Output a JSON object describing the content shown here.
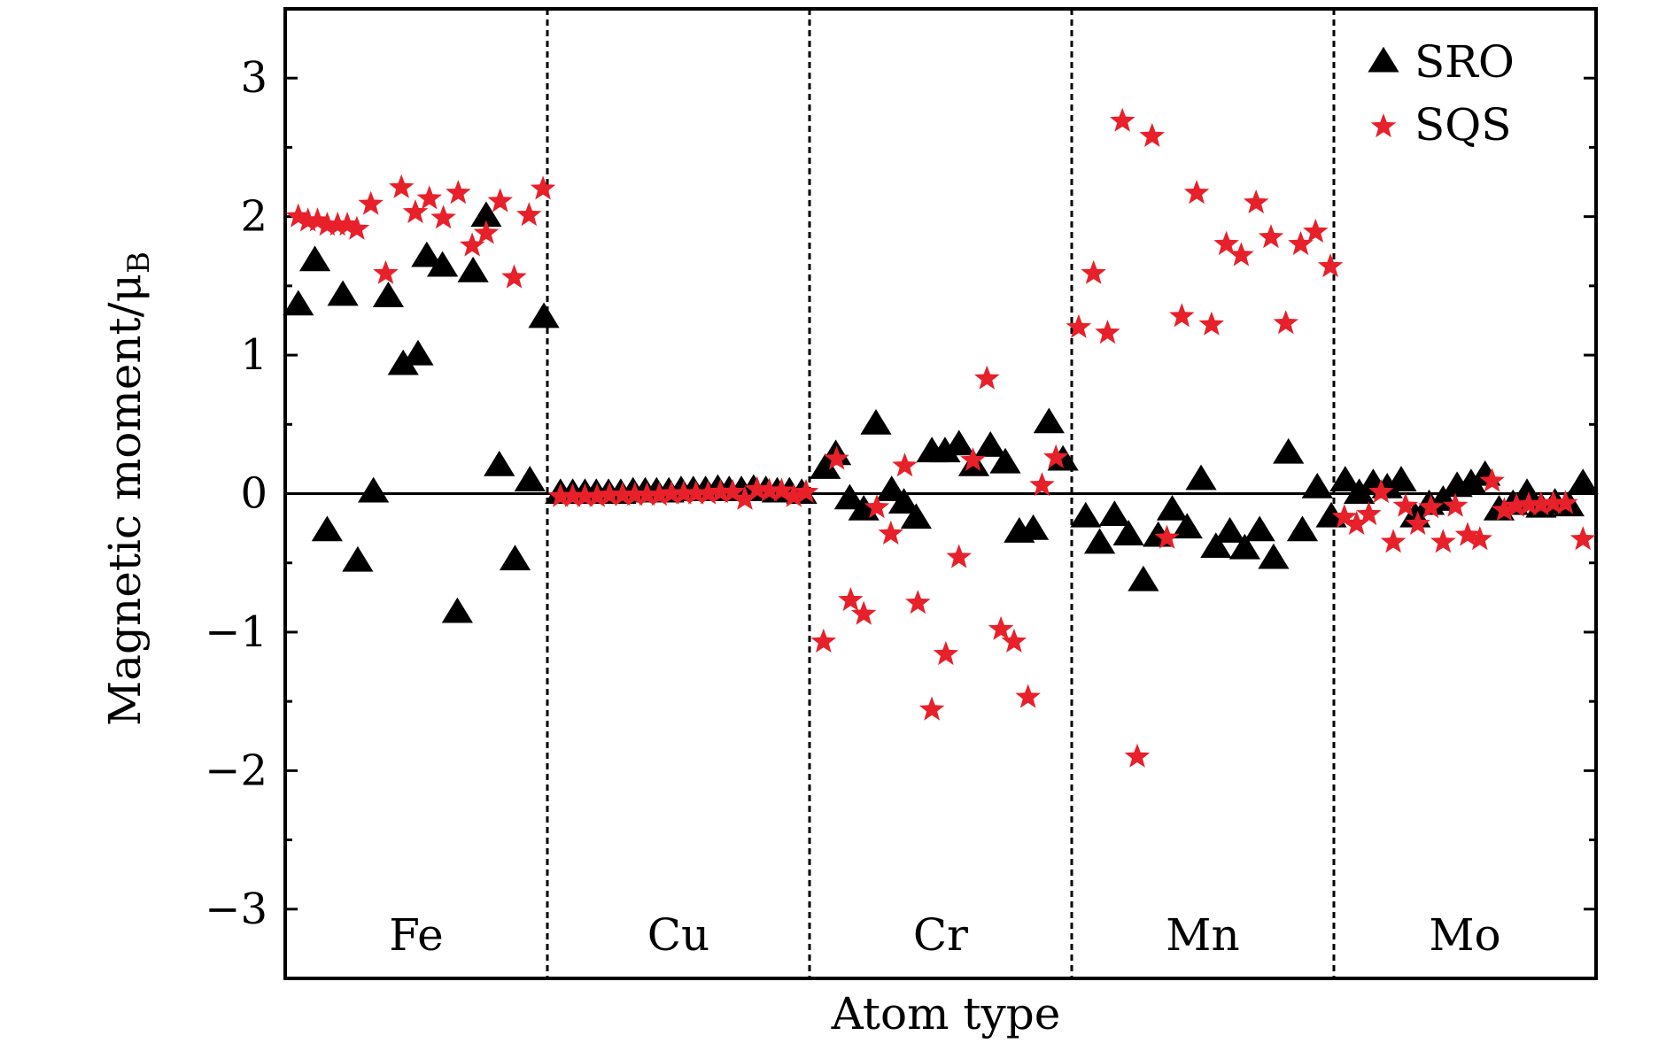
{
  "chart_data": {
    "type": "scatter",
    "title": "",
    "xlabel": "Atom type",
    "ylabel": "Magnetic moment/μ",
    "ylabel_subscript": "B",
    "ylim": [
      -3.5,
      3.5
    ],
    "yticks": [
      -3,
      -2,
      -1,
      0,
      1,
      2,
      3
    ],
    "ytick_labels": [
      "−3",
      "−2",
      "−1",
      "0",
      "1",
      "2",
      "3"
    ],
    "xlim": [
      0,
      150
    ],
    "grid": false,
    "legend_position": "top-right",
    "regions": [
      {
        "label": "Fe",
        "start": 0,
        "end": 30
      },
      {
        "label": "Cu",
        "start": 30,
        "end": 60
      },
      {
        "label": "Cr",
        "start": 60,
        "end": 90
      },
      {
        "label": "Mn",
        "start": 90,
        "end": 120
      },
      {
        "label": "Mo",
        "start": 120,
        "end": 150
      }
    ],
    "series": [
      {
        "name": "SRO",
        "marker": "triangle",
        "color": "#000000",
        "points": [
          [
            1.5,
            1.36
          ],
          [
            3.4,
            1.68
          ],
          [
            4.8,
            -0.27
          ],
          [
            6.6,
            1.43
          ],
          [
            8.3,
            -0.49
          ],
          [
            10.1,
            0.01
          ],
          [
            11.8,
            1.42
          ],
          [
            13.5,
            0.93
          ],
          [
            15.2,
            1.0
          ],
          [
            16.2,
            1.71
          ],
          [
            18.0,
            1.64
          ],
          [
            19.7,
            -0.86
          ],
          [
            21.5,
            1.6
          ],
          [
            23.0,
            2.0
          ],
          [
            24.5,
            0.2
          ],
          [
            26.3,
            -0.48
          ],
          [
            28.0,
            0.09
          ],
          [
            29.6,
            1.27
          ],
          [
            31.5,
            0.0
          ],
          [
            32.9,
            0.0
          ],
          [
            34.3,
            0.0
          ],
          [
            35.6,
            0.0
          ],
          [
            37.0,
            0.0
          ],
          [
            38.4,
            0.0
          ],
          [
            39.8,
            0.01
          ],
          [
            41.2,
            0.01
          ],
          [
            42.5,
            0.01
          ],
          [
            43.9,
            0.01
          ],
          [
            45.3,
            0.02
          ],
          [
            46.7,
            0.02
          ],
          [
            48.1,
            0.02
          ],
          [
            49.5,
            0.03
          ],
          [
            50.8,
            0.02
          ],
          [
            52.2,
            0.02
          ],
          [
            53.6,
            0.03
          ],
          [
            55.0,
            0.02
          ],
          [
            56.3,
            0.01
          ],
          [
            57.7,
            0.01
          ],
          [
            59.1,
            0.0
          ],
          [
            61.8,
            0.18
          ],
          [
            63.0,
            0.28
          ],
          [
            64.6,
            -0.04
          ],
          [
            66.2,
            -0.12
          ],
          [
            67.6,
            0.5
          ],
          [
            69.4,
            0.02
          ],
          [
            70.8,
            -0.07
          ],
          [
            72.2,
            -0.18
          ],
          [
            74.0,
            0.3
          ],
          [
            75.5,
            0.3
          ],
          [
            77.1,
            0.35
          ],
          [
            78.8,
            0.2
          ],
          [
            80.7,
            0.34
          ],
          [
            82.4,
            0.22
          ],
          [
            84.0,
            -0.28
          ],
          [
            85.6,
            -0.26
          ],
          [
            87.4,
            0.51
          ],
          [
            89.0,
            0.24
          ],
          [
            91.6,
            -0.17
          ],
          [
            93.2,
            -0.36
          ],
          [
            94.9,
            -0.16
          ],
          [
            96.5,
            -0.3
          ],
          [
            98.2,
            -0.63
          ],
          [
            99.9,
            -0.31
          ],
          [
            101.5,
            -0.12
          ],
          [
            103.2,
            -0.25
          ],
          [
            104.8,
            0.1
          ],
          [
            106.5,
            -0.39
          ],
          [
            108.1,
            -0.28
          ],
          [
            109.8,
            -0.4
          ],
          [
            111.5,
            -0.27
          ],
          [
            113.1,
            -0.47
          ],
          [
            114.8,
            0.29
          ],
          [
            116.4,
            -0.27
          ],
          [
            118.1,
            0.04
          ],
          [
            119.7,
            -0.17
          ],
          [
            121.3,
            0.09
          ],
          [
            122.9,
            0.0
          ],
          [
            124.5,
            0.07
          ],
          [
            126.1,
            0.04
          ],
          [
            127.7,
            0.09
          ],
          [
            129.3,
            -0.17
          ],
          [
            130.9,
            -0.08
          ],
          [
            132.5,
            -0.05
          ],
          [
            134.1,
            0.05
          ],
          [
            135.7,
            0.07
          ],
          [
            137.3,
            0.13
          ],
          [
            138.9,
            -0.12
          ],
          [
            140.5,
            -0.08
          ],
          [
            142.1,
            0.0
          ],
          [
            143.7,
            -0.1
          ],
          [
            145.3,
            -0.07
          ],
          [
            146.9,
            -0.09
          ],
          [
            148.5,
            0.07
          ]
        ]
      },
      {
        "name": "SQS",
        "marker": "star",
        "color": "#e8202a",
        "points": [
          [
            1.5,
            2.0
          ],
          [
            2.6,
            1.97
          ],
          [
            3.7,
            1.97
          ],
          [
            4.8,
            1.94
          ],
          [
            6.0,
            1.94
          ],
          [
            7.1,
            1.94
          ],
          [
            8.2,
            1.91
          ],
          [
            9.8,
            2.09
          ],
          [
            11.5,
            1.59
          ],
          [
            13.3,
            2.21
          ],
          [
            14.9,
            2.03
          ],
          [
            16.5,
            2.13
          ],
          [
            18.1,
            1.99
          ],
          [
            19.8,
            2.17
          ],
          [
            21.4,
            1.79
          ],
          [
            23.0,
            1.88
          ],
          [
            24.6,
            2.11
          ],
          [
            26.2,
            1.56
          ],
          [
            27.9,
            2.01
          ],
          [
            29.5,
            2.2
          ],
          [
            31.5,
            -0.02
          ],
          [
            32.9,
            -0.02
          ],
          [
            34.3,
            -0.02
          ],
          [
            35.7,
            -0.02
          ],
          [
            37.1,
            -0.01
          ],
          [
            38.6,
            -0.01
          ],
          [
            40.0,
            -0.01
          ],
          [
            41.4,
            -0.01
          ],
          [
            42.8,
            -0.01
          ],
          [
            44.2,
            0.0
          ],
          [
            45.6,
            0.0
          ],
          [
            47.0,
            0.0
          ],
          [
            48.4,
            0.0
          ],
          [
            49.8,
            0.01
          ],
          [
            51.2,
            0.01
          ],
          [
            52.6,
            -0.04
          ],
          [
            54.0,
            0.03
          ],
          [
            55.4,
            0.02
          ],
          [
            56.8,
            0.02
          ],
          [
            58.2,
            -0.02
          ],
          [
            59.6,
            0.01
          ],
          [
            61.6,
            -1.07
          ],
          [
            63.1,
            0.25
          ],
          [
            64.7,
            -0.77
          ],
          [
            66.2,
            -0.87
          ],
          [
            67.7,
            -0.1
          ],
          [
            69.3,
            -0.29
          ],
          [
            70.9,
            0.2
          ],
          [
            72.4,
            -0.79
          ],
          [
            74.0,
            -1.56
          ],
          [
            75.6,
            -1.16
          ],
          [
            77.1,
            -0.46
          ],
          [
            78.7,
            0.24
          ],
          [
            80.3,
            0.83
          ],
          [
            81.9,
            -0.98
          ],
          [
            83.4,
            -1.07
          ],
          [
            85.0,
            -1.47
          ],
          [
            86.6,
            0.06
          ],
          [
            88.2,
            0.26
          ],
          [
            90.8,
            1.2
          ],
          [
            92.5,
            1.59
          ],
          [
            94.1,
            1.16
          ],
          [
            95.8,
            2.69
          ],
          [
            97.5,
            -1.9
          ],
          [
            99.2,
            2.58
          ],
          [
            100.9,
            -0.32
          ],
          [
            102.6,
            1.28
          ],
          [
            104.3,
            2.17
          ],
          [
            106.0,
            1.22
          ],
          [
            107.7,
            1.8
          ],
          [
            109.4,
            1.72
          ],
          [
            111.1,
            2.1
          ],
          [
            112.8,
            1.85
          ],
          [
            114.5,
            1.23
          ],
          [
            116.2,
            1.8
          ],
          [
            117.9,
            1.89
          ],
          [
            119.6,
            1.64
          ],
          [
            121.2,
            -0.17
          ],
          [
            122.6,
            -0.22
          ],
          [
            124.0,
            -0.15
          ],
          [
            125.4,
            0.01
          ],
          [
            126.8,
            -0.35
          ],
          [
            128.2,
            -0.09
          ],
          [
            129.6,
            -0.22
          ],
          [
            131.1,
            -0.1
          ],
          [
            132.5,
            -0.35
          ],
          [
            133.9,
            -0.09
          ],
          [
            135.3,
            -0.3
          ],
          [
            136.7,
            -0.33
          ],
          [
            138.1,
            0.09
          ],
          [
            139.5,
            -0.12
          ],
          [
            140.9,
            -0.09
          ],
          [
            142.3,
            -0.08
          ],
          [
            143.7,
            -0.08
          ],
          [
            145.1,
            -0.07
          ],
          [
            146.5,
            -0.07
          ],
          [
            148.5,
            -0.33
          ]
        ]
      }
    ]
  }
}
